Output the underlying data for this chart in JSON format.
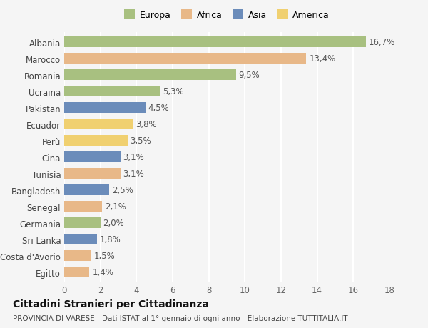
{
  "categories": [
    "Albania",
    "Marocco",
    "Romania",
    "Ucraina",
    "Pakistan",
    "Ecuador",
    "Perù",
    "Cina",
    "Tunisia",
    "Bangladesh",
    "Senegal",
    "Germania",
    "Sri Lanka",
    "Costa d'Avorio",
    "Egitto"
  ],
  "values": [
    16.7,
    13.4,
    9.5,
    5.3,
    4.5,
    3.8,
    3.5,
    3.1,
    3.1,
    2.5,
    2.1,
    2.0,
    1.8,
    1.5,
    1.4
  ],
  "labels": [
    "16,7%",
    "13,4%",
    "9,5%",
    "5,3%",
    "4,5%",
    "3,8%",
    "3,5%",
    "3,1%",
    "3,1%",
    "2,5%",
    "2,1%",
    "2,0%",
    "1,8%",
    "1,5%",
    "1,4%"
  ],
  "colors": [
    "#a8c080",
    "#e8b888",
    "#a8c080",
    "#a8c080",
    "#6b8cba",
    "#f0d070",
    "#f0d070",
    "#6b8cba",
    "#e8b888",
    "#6b8cba",
    "#e8b888",
    "#a8c080",
    "#6b8cba",
    "#e8b888",
    "#e8b888"
  ],
  "legend_labels": [
    "Europa",
    "Africa",
    "Asia",
    "America"
  ],
  "legend_colors": [
    "#a8c080",
    "#e8b888",
    "#6b8cba",
    "#f0d070"
  ],
  "xlim": [
    0,
    18
  ],
  "xticks": [
    0,
    2,
    4,
    6,
    8,
    10,
    12,
    14,
    16,
    18
  ],
  "title": "Cittadini Stranieri per Cittadinanza",
  "subtitle": "PROVINCIA DI VARESE - Dati ISTAT al 1° gennaio di ogni anno - Elaborazione TUTTITALIA.IT",
  "bg_color": "#f5f5f5",
  "grid_color": "#ffffff",
  "bar_height": 0.65,
  "label_fontsize": 8.5,
  "tick_fontsize": 8.5,
  "title_fontsize": 10,
  "subtitle_fontsize": 7.5
}
